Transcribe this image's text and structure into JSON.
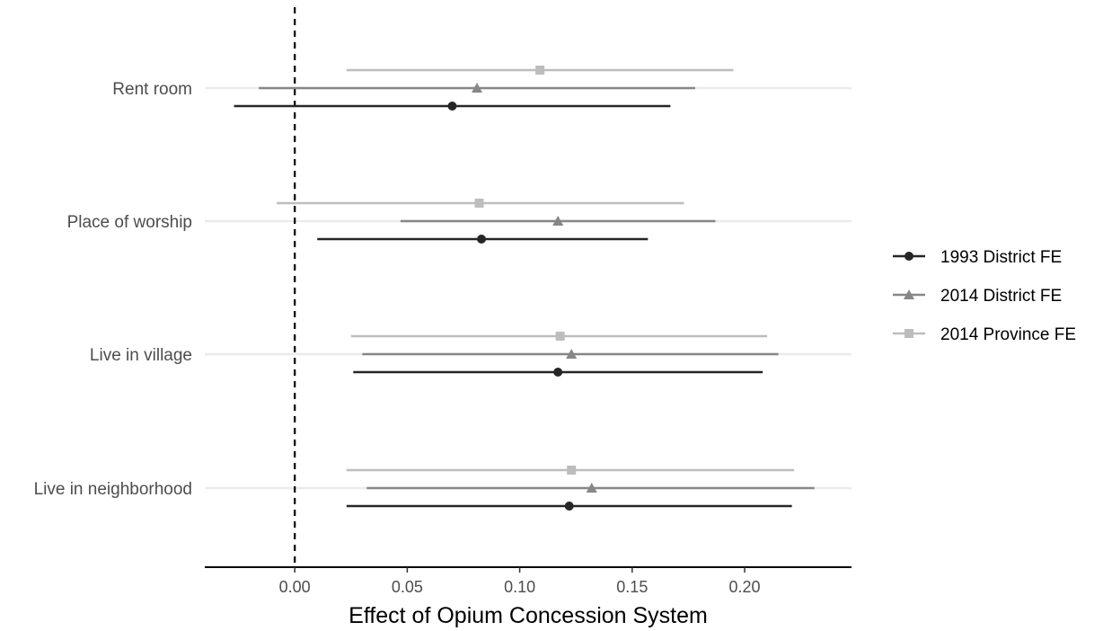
{
  "chart_data": {
    "type": "coefficient-plot",
    "orientation": "horizontal",
    "xlabel": "Effect of Opium Concession System",
    "ylabel": "",
    "title": "",
    "xlim": [
      -0.04,
      0.2475
    ],
    "xticks": [
      "0.00",
      "0.05",
      "0.10",
      "0.15",
      "0.20"
    ],
    "xtick_values": [
      0.0,
      0.05,
      0.1,
      0.15,
      0.2
    ],
    "reference_line": {
      "x": 0,
      "style": "dashed"
    },
    "grid": {
      "horizontal_major": true,
      "vertical": false
    },
    "legend_position": "right",
    "categories": [
      "Rent room",
      "Place of worship",
      "Live in village",
      "Live in neighborhood"
    ],
    "series": [
      {
        "name": "1993 District FE",
        "marker": "circle",
        "color": "#262626",
        "estimates": [
          0.07,
          0.083,
          0.117,
          0.122
        ],
        "ci_low": [
          -0.027,
          0.01,
          0.026,
          0.023
        ],
        "ci_high": [
          0.167,
          0.157,
          0.208,
          0.221
        ]
      },
      {
        "name": "2014 District FE",
        "marker": "triangle",
        "color": "#878787",
        "estimates": [
          0.081,
          0.117,
          0.123,
          0.132
        ],
        "ci_low": [
          -0.016,
          0.047,
          0.03,
          0.032
        ],
        "ci_high": [
          0.178,
          0.187,
          0.215,
          0.231
        ]
      },
      {
        "name": "2014 Province FE",
        "marker": "square",
        "color": "#bdbdbd",
        "estimates": [
          0.109,
          0.082,
          0.118,
          0.123
        ],
        "ci_low": [
          0.023,
          -0.008,
          0.025,
          0.023
        ],
        "ci_high": [
          0.195,
          0.173,
          0.21,
          0.222
        ]
      }
    ]
  }
}
